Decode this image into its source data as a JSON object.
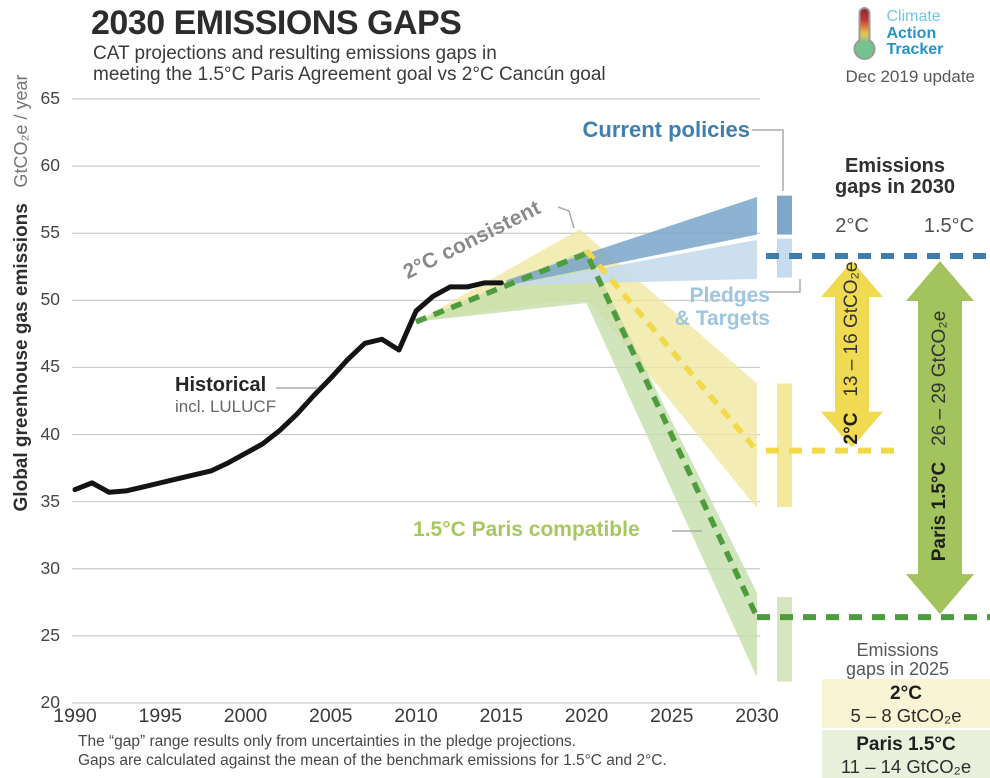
{
  "header": {
    "title": "2030 EMISSIONS GAPS",
    "subtitle_line1": "CAT projections and resulting emissions gaps in",
    "subtitle_line2": "meeting the 1.5°C Paris Agreement goal vs 2°C Cancún goal"
  },
  "logo": {
    "line1": "Climate",
    "line2": "Action",
    "line3": "Tracker",
    "update_note": "Dec 2019 update"
  },
  "y_axis": {
    "title_bold": "Global greenhouse gas emissions",
    "title_unit": "GtCO₂e / year"
  },
  "labels": {
    "historical": "Historical",
    "historical_sub": "incl. LULUCF",
    "two_c_consistent": "2°C consistent",
    "current_policies": "Current policies",
    "pledges_line1": "Pledges",
    "pledges_line2": "& Targets",
    "paris_compatible": "1.5°C Paris compatible"
  },
  "gaps_2030": {
    "title_line1": "Emissions",
    "title_line2": "gaps in 2030",
    "col_left": "2°C",
    "col_right": "1.5°C"
  },
  "gaps_2025": {
    "title_line1": "Emissions",
    "title_line2": "gaps in 2025",
    "box_2c_label": "2°C",
    "box_2c_range": "5 – 8  GtCO₂e",
    "box_15c_label": "Paris 1.5°C",
    "box_15c_range": "11 – 14  GtCO₂e"
  },
  "footnote": {
    "line1": "The “gap” range results only from uncertainties in the pledge projections.",
    "line2": "Gaps are calculated against the mean of the benchmark emissions for 1.5°C and 2°C."
  },
  "chart_data": {
    "type": "line",
    "title": "2030 EMISSIONS GAPS",
    "xlabel": "",
    "ylabel": "Global greenhouse gas emissions (GtCO₂e / year)",
    "xlim": [
      1990,
      2030
    ],
    "ylim": [
      20,
      65
    ],
    "x_ticks": [
      1990,
      1995,
      2000,
      2005,
      2010,
      2015,
      2020,
      2025,
      2030
    ],
    "y_ticks": [
      20,
      25,
      30,
      35,
      40,
      45,
      50,
      55,
      60,
      65
    ],
    "grid": "horizontal",
    "series": [
      {
        "name": "2°C consistent range",
        "type": "band",
        "color": "#efe8a0",
        "opacity": 0.78,
        "polygon": [
          [
            2010,
            48.4
          ],
          [
            2019.6,
            55.3
          ],
          [
            2030,
            43.8
          ],
          [
            2030,
            34.5
          ],
          [
            2020,
            50.2
          ]
        ]
      },
      {
        "name": "1.5°C Paris compatible range",
        "type": "band",
        "color": "#c6deab",
        "opacity": 0.8,
        "polygon": [
          [
            2010,
            48.4
          ],
          [
            2020,
            53.8
          ],
          [
            2030,
            28.2
          ],
          [
            2030,
            21.9
          ],
          [
            2020,
            49.8
          ]
        ]
      },
      {
        "name": "Pledges & Targets range",
        "type": "band",
        "color": "#c6dbed",
        "opacity": 0.9,
        "polygon": [
          [
            2015.3,
            51.1
          ],
          [
            2030,
            54.5
          ],
          [
            2030,
            51.6
          ]
        ]
      },
      {
        "name": "Current policies range",
        "type": "band",
        "color": "#7aa5c9",
        "opacity": 0.85,
        "polygon": [
          [
            2015.3,
            51.5
          ],
          [
            2030,
            57.7
          ],
          [
            2030,
            54.9
          ],
          [
            2015.3,
            51.1
          ]
        ]
      },
      {
        "name": "2°C consistent benchmark (mean)",
        "type": "dashed-line",
        "color": "#f2d94a",
        "points": [
          [
            2020,
            53.7
          ],
          [
            2030,
            38.8
          ]
        ]
      },
      {
        "name": "1.5°C Paris compatible benchmark (mean)",
        "type": "dashed-line",
        "color": "#4f9c3f",
        "points": [
          [
            2010,
            48.4
          ],
          [
            2020,
            53.5
          ],
          [
            2030,
            26.4
          ]
        ]
      },
      {
        "name": "Historical incl. LULUCF",
        "type": "line",
        "color": "#141414",
        "x": [
          1990,
          1991,
          1992,
          1993,
          1994,
          1995,
          1996,
          1997,
          1998,
          1999,
          2000,
          2001,
          2002,
          2003,
          2004,
          2005,
          2006,
          2007,
          2008,
          2009,
          2010,
          2011,
          2012,
          2013,
          2014,
          2015
        ],
        "values": [
          35.9,
          36.4,
          35.7,
          35.8,
          36.1,
          36.4,
          36.7,
          37.0,
          37.3,
          37.9,
          38.6,
          39.3,
          40.3,
          41.5,
          42.9,
          44.2,
          45.6,
          46.8,
          47.1,
          46.3,
          49.2,
          50.3,
          51.0,
          51.0,
          51.3,
          51.3
        ]
      }
    ],
    "range_bars_2030": [
      {
        "name": "current-policies",
        "color": "#7ea7cb",
        "from": 54.9,
        "to": 57.8
      },
      {
        "name": "pledges-targets",
        "color": "#c6dbed",
        "from": 51.7,
        "to": 54.6
      },
      {
        "name": "2c-benchmark",
        "color": "#f4e89b",
        "from": 34.6,
        "to": 43.8
      },
      {
        "name": "paris-15c-benchmark",
        "color": "#d4e5bf",
        "from": 21.6,
        "to": 27.9
      }
    ],
    "reference_lines": [
      {
        "name": "pledges-mean-2030",
        "color": "#3f7dac",
        "value": 53.3
      },
      {
        "name": "2c-mean-2030",
        "color": "#f2d94a",
        "value": 38.8
      },
      {
        "name": "paris-15c-mean-2030",
        "color": "#4f9c3f",
        "value": 26.4
      }
    ],
    "gap_arrows": [
      {
        "name": "2c-gap",
        "color": "#f0da51",
        "from": 53.3,
        "to": 38.8,
        "label": "2°C",
        "range": "13 – 16 GtCO₂e"
      },
      {
        "name": "paris-15c-gap",
        "color": "#a3c35d",
        "from": 53.3,
        "to": 26.4,
        "label": "Paris 1.5°C",
        "range": "26 – 29 GtCO₂e"
      }
    ]
  }
}
